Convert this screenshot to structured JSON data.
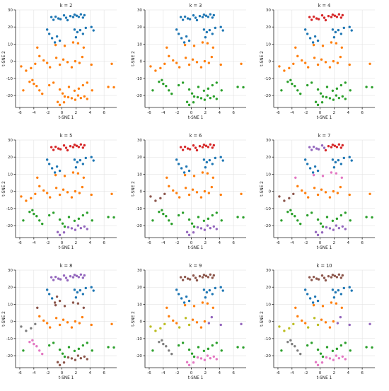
{
  "figure": {
    "xlabel": "t-SNE 1",
    "ylabel": "t-SNE 2",
    "x_ticks": [
      -6,
      -4,
      -2,
      0,
      2,
      4,
      6
    ],
    "y_ticks": [
      -20,
      -10,
      0,
      10,
      20,
      30
    ],
    "xlim": [
      -6.6,
      7.8
    ],
    "ylim": [
      -27,
      30
    ],
    "palette": [
      "#1f77b4",
      "#ff7f0e",
      "#2ca02c",
      "#d62728",
      "#9467bd",
      "#8c564b",
      "#e377c2",
      "#7f7f7f",
      "#bcbd22",
      "#17becf"
    ]
  },
  "chart_data": {
    "type": "scatter",
    "title": "",
    "xlabel": "t-SNE 1",
    "ylabel": "t-SNE 2",
    "grid": true,
    "points": [
      [
        -1.5,
        25.8
      ],
      [
        -1.2,
        24.2
      ],
      [
        -0.9,
        26.0
      ],
      [
        -0.5,
        25.0
      ],
      [
        -0.2,
        24.6
      ],
      [
        0.6,
        25.4
      ],
      [
        0.8,
        24.0
      ],
      [
        1.2,
        26.4
      ],
      [
        1.6,
        25.8
      ],
      [
        1.8,
        27.2
      ],
      [
        2.1,
        26.6
      ],
      [
        2.4,
        25.9
      ],
      [
        2.7,
        27.4
      ],
      [
        3.0,
        25.5
      ],
      [
        3.2,
        26.9
      ],
      [
        0.3,
        26.8
      ],
      [
        -2.1,
        18.5
      ],
      [
        -1.8,
        16.0
      ],
      [
        -1.4,
        13.5
      ],
      [
        -1.0,
        11.0
      ],
      [
        -0.7,
        14.5
      ],
      [
        -0.3,
        12.0
      ],
      [
        1.8,
        18.5
      ],
      [
        2.2,
        17.0
      ],
      [
        2.6,
        18.2
      ],
      [
        3.0,
        16.0
      ],
      [
        2.0,
        14.0
      ],
      [
        3.4,
        19.5
      ],
      [
        4.2,
        20.0
      ],
      [
        4.5,
        18.0
      ],
      [
        -3.5,
        8.0
      ],
      [
        -0.9,
        9.5
      ],
      [
        0.4,
        9.0
      ],
      [
        1.6,
        11.0
      ],
      [
        2.3,
        10.5
      ],
      [
        3.1,
        8.0
      ],
      [
        -3.2,
        3.0
      ],
      [
        -2.6,
        0.5
      ],
      [
        -2.1,
        -1.0
      ],
      [
        -1.7,
        -3.5
      ],
      [
        -0.8,
        2.0
      ],
      [
        -0.3,
        -2.0
      ],
      [
        0.2,
        1.0
      ],
      [
        0.8,
        -0.5
      ],
      [
        1.4,
        -3.5
      ],
      [
        1.9,
        0.0
      ],
      [
        2.5,
        -1.0
      ],
      [
        2.9,
        2.5
      ],
      [
        4.2,
        -2.0
      ],
      [
        -5.8,
        -3.0
      ],
      [
        -5.1,
        -5.5
      ],
      [
        -4.4,
        -4.0
      ],
      [
        -3.8,
        -1.5
      ],
      [
        7.1,
        -1.5
      ],
      [
        -4.2,
        -11.0
      ],
      [
        -4.6,
        -12.0
      ],
      [
        -4.0,
        -13.2
      ],
      [
        -3.6,
        -14.5
      ],
      [
        -3.2,
        -17.0
      ],
      [
        -2.8,
        -19.0
      ],
      [
        -1.8,
        -14.0
      ],
      [
        -1.2,
        -12.5
      ],
      [
        -0.3,
        -16.5
      ],
      [
        0.1,
        -18.8
      ],
      [
        0.4,
        -20.6
      ],
      [
        1.0,
        -15.0
      ],
      [
        1.8,
        -17.2
      ],
      [
        2.4,
        -16.0
      ],
      [
        3.0,
        -14.0
      ],
      [
        3.6,
        -12.5
      ],
      [
        4.3,
        -17.0
      ],
      [
        6.6,
        -15.0
      ],
      [
        7.4,
        -15.2
      ],
      [
        -5.5,
        -17.0
      ],
      [
        0.9,
        -21.0
      ],
      [
        1.4,
        -21.6
      ],
      [
        1.9,
        -22.5
      ],
      [
        2.3,
        -20.0
      ],
      [
        2.7,
        -21.5
      ],
      [
        3.2,
        -20.5
      ],
      [
        3.6,
        -22.0
      ],
      [
        -0.6,
        -23.8
      ],
      [
        -0.3,
        -25.5
      ],
      [
        0.3,
        -24.0
      ]
    ],
    "panels": [
      {
        "title": "k = 2",
        "labels": [
          0,
          0,
          0,
          0,
          0,
          0,
          0,
          0,
          0,
          0,
          0,
          0,
          0,
          0,
          0,
          0,
          0,
          0,
          0,
          0,
          0,
          0,
          0,
          0,
          0,
          0,
          0,
          0,
          0,
          0,
          1,
          1,
          1,
          1,
          1,
          1,
          1,
          1,
          1,
          1,
          1,
          1,
          1,
          1,
          1,
          1,
          1,
          1,
          1,
          1,
          1,
          1,
          1,
          1,
          1,
          1,
          1,
          1,
          1,
          1,
          1,
          1,
          1,
          1,
          1,
          1,
          1,
          1,
          1,
          1,
          1,
          1,
          1,
          1,
          1,
          1,
          1,
          1,
          1,
          1,
          1,
          1,
          1,
          1
        ]
      },
      {
        "title": "k = 3",
        "labels": [
          0,
          0,
          0,
          0,
          0,
          0,
          0,
          0,
          0,
          0,
          0,
          0,
          0,
          0,
          0,
          0,
          0,
          0,
          0,
          0,
          0,
          0,
          0,
          0,
          0,
          0,
          0,
          0,
          0,
          0,
          1,
          1,
          1,
          1,
          1,
          1,
          1,
          1,
          1,
          1,
          1,
          1,
          1,
          1,
          1,
          1,
          1,
          1,
          1,
          1,
          1,
          1,
          1,
          1,
          2,
          2,
          2,
          2,
          2,
          2,
          2,
          2,
          2,
          2,
          2,
          2,
          2,
          2,
          2,
          2,
          2,
          2,
          2,
          2,
          2,
          2,
          2,
          2,
          2,
          2,
          2,
          2,
          2,
          2
        ]
      },
      {
        "title": "k = 4",
        "labels": [
          3,
          3,
          3,
          3,
          3,
          3,
          3,
          3,
          3,
          3,
          3,
          3,
          3,
          3,
          3,
          3,
          0,
          0,
          0,
          0,
          0,
          0,
          0,
          0,
          0,
          0,
          0,
          0,
          0,
          0,
          1,
          1,
          1,
          1,
          1,
          1,
          1,
          1,
          1,
          1,
          1,
          1,
          1,
          1,
          1,
          1,
          1,
          1,
          1,
          1,
          1,
          1,
          1,
          1,
          2,
          2,
          2,
          2,
          2,
          2,
          2,
          2,
          2,
          2,
          2,
          2,
          2,
          2,
          2,
          2,
          2,
          2,
          2,
          2,
          2,
          2,
          2,
          2,
          2,
          2,
          2,
          2,
          2,
          2
        ]
      },
      {
        "title": "k = 5",
        "labels": [
          3,
          3,
          3,
          3,
          3,
          3,
          3,
          3,
          3,
          3,
          3,
          3,
          3,
          3,
          3,
          3,
          0,
          0,
          0,
          0,
          0,
          0,
          0,
          0,
          0,
          0,
          0,
          0,
          0,
          0,
          1,
          1,
          1,
          1,
          1,
          1,
          1,
          1,
          1,
          1,
          1,
          1,
          1,
          1,
          1,
          1,
          1,
          1,
          1,
          1,
          1,
          1,
          1,
          1,
          2,
          2,
          2,
          2,
          2,
          2,
          2,
          2,
          2,
          2,
          2,
          2,
          2,
          2,
          2,
          2,
          2,
          2,
          2,
          2,
          4,
          4,
          4,
          4,
          4,
          4,
          4,
          4,
          4,
          4
        ]
      },
      {
        "title": "k = 6",
        "labels": [
          3,
          3,
          3,
          3,
          3,
          3,
          3,
          3,
          3,
          3,
          3,
          3,
          3,
          3,
          3,
          3,
          0,
          0,
          0,
          0,
          0,
          0,
          0,
          0,
          0,
          0,
          0,
          0,
          0,
          0,
          1,
          1,
          1,
          1,
          1,
          1,
          1,
          1,
          1,
          1,
          1,
          1,
          1,
          1,
          1,
          1,
          1,
          1,
          1,
          5,
          5,
          5,
          5,
          1,
          2,
          2,
          2,
          2,
          2,
          2,
          2,
          2,
          2,
          2,
          2,
          2,
          2,
          2,
          2,
          2,
          2,
          2,
          2,
          2,
          4,
          4,
          4,
          4,
          4,
          4,
          4,
          4,
          4,
          4
        ]
      },
      {
        "title": "k = 7",
        "labels": [
          4,
          4,
          4,
          4,
          4,
          4,
          3,
          3,
          3,
          3,
          3,
          3,
          3,
          3,
          3,
          4,
          0,
          0,
          0,
          0,
          0,
          0,
          0,
          0,
          0,
          0,
          0,
          0,
          0,
          0,
          6,
          6,
          6,
          6,
          6,
          6,
          1,
          1,
          1,
          1,
          1,
          1,
          1,
          1,
          1,
          1,
          1,
          1,
          1,
          5,
          5,
          5,
          5,
          1,
          2,
          2,
          2,
          2,
          2,
          2,
          2,
          2,
          2,
          2,
          2,
          2,
          2,
          2,
          2,
          2,
          2,
          2,
          2,
          2,
          4,
          4,
          4,
          4,
          4,
          4,
          4,
          4,
          4,
          4
        ]
      },
      {
        "title": "k = 8",
        "labels": [
          4,
          4,
          4,
          4,
          4,
          4,
          4,
          4,
          4,
          4,
          4,
          4,
          4,
          4,
          4,
          4,
          0,
          0,
          0,
          5,
          5,
          5,
          0,
          0,
          0,
          0,
          0,
          0,
          0,
          0,
          5,
          5,
          5,
          5,
          5,
          5,
          1,
          1,
          1,
          1,
          1,
          1,
          1,
          1,
          1,
          1,
          1,
          1,
          1,
          7,
          7,
          7,
          7,
          1,
          6,
          6,
          6,
          6,
          6,
          6,
          2,
          2,
          2,
          2,
          2,
          2,
          2,
          2,
          2,
          2,
          2,
          2,
          2,
          2,
          5,
          5,
          5,
          5,
          5,
          5,
          5,
          5,
          5,
          5
        ]
      },
      {
        "title": "k = 9",
        "labels": [
          5,
          5,
          5,
          5,
          5,
          5,
          5,
          5,
          5,
          5,
          5,
          5,
          5,
          5,
          5,
          5,
          0,
          0,
          0,
          0,
          0,
          0,
          0,
          0,
          0,
          0,
          0,
          0,
          0,
          0,
          1,
          1,
          1,
          1,
          1,
          1,
          1,
          1,
          1,
          8,
          8,
          8,
          1,
          1,
          1,
          1,
          4,
          4,
          4,
          8,
          8,
          8,
          8,
          4,
          7,
          7,
          7,
          7,
          7,
          7,
          2,
          2,
          2,
          2,
          2,
          2,
          2,
          2,
          2,
          2,
          2,
          2,
          2,
          2,
          6,
          6,
          6,
          6,
          6,
          6,
          6,
          6,
          6,
          6
        ]
      },
      {
        "title": "k = 10",
        "labels": [
          5,
          5,
          5,
          5,
          5,
          5,
          5,
          5,
          5,
          5,
          5,
          5,
          5,
          5,
          5,
          5,
          0,
          0,
          0,
          0,
          0,
          0,
          0,
          0,
          0,
          0,
          0,
          0,
          0,
          0,
          1,
          1,
          1,
          1,
          1,
          1,
          1,
          1,
          1,
          8,
          8,
          8,
          1,
          1,
          1,
          1,
          4,
          4,
          4,
          8,
          8,
          8,
          8,
          4,
          7,
          7,
          7,
          7,
          7,
          7,
          2,
          2,
          2,
          2,
          2,
          2,
          2,
          2,
          2,
          2,
          2,
          2,
          2,
          2,
          6,
          6,
          6,
          6,
          6,
          6,
          6,
          6,
          6,
          6
        ]
      }
    ]
  }
}
